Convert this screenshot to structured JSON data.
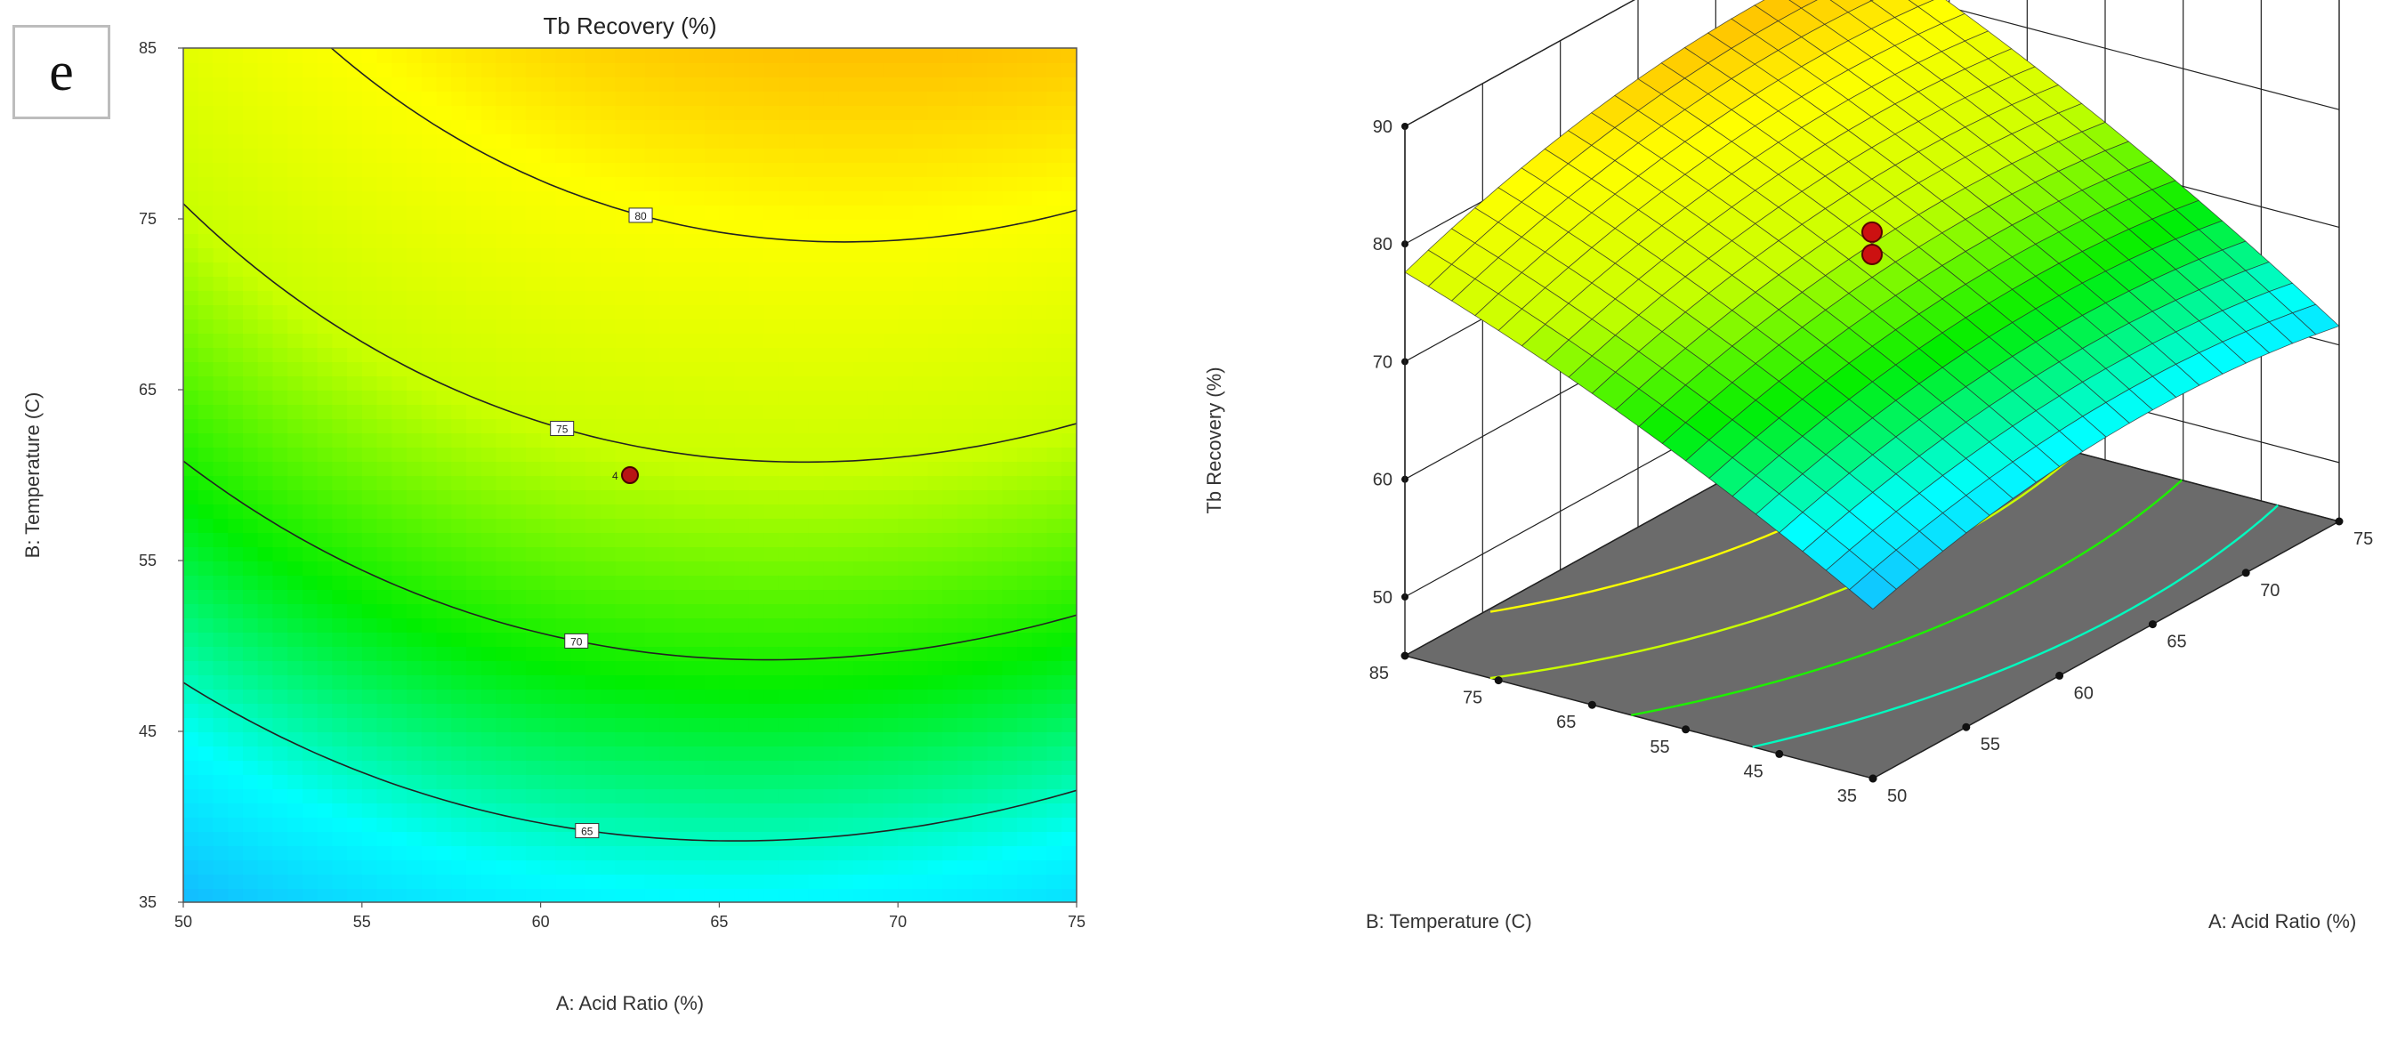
{
  "panel_label": "e",
  "chart_data": [
    {
      "type": "contour",
      "title": "Tb Recovery (%)",
      "xlabel": "A: Acid Ratio (%)",
      "ylabel": "B: Temperature (C)",
      "xlim": [
        50,
        75
      ],
      "ylim": [
        35,
        85
      ],
      "xticks": [
        50,
        55,
        60,
        65,
        70,
        75
      ],
      "yticks": [
        35,
        45,
        55,
        65,
        75,
        85
      ],
      "contour_levels": [
        65,
        70,
        75,
        80
      ],
      "contour_labels": [
        "65",
        "70",
        "75",
        "80"
      ],
      "design_point": {
        "x": 62.5,
        "y": 60,
        "label": "4"
      },
      "colormap": [
        "#1aa3ff",
        "#00ffff",
        "#00ee00",
        "#c8ff00",
        "#ffff00",
        "#ff9900"
      ]
    },
    {
      "type": "surface3d",
      "zlabel": "Tb Recovery (%)",
      "xlabel": "A: Acid Ratio (%)",
      "ylabel": "B: Temperature (C)",
      "xlim": [
        50,
        75
      ],
      "ylim": [
        35,
        85
      ],
      "zlim": [
        50,
        90
      ],
      "xticks": [
        50,
        55,
        60,
        65,
        70,
        75
      ],
      "yticks": [
        35,
        45,
        55,
        65,
        75,
        85
      ],
      "zticks": [
        50,
        60,
        70,
        80,
        90
      ],
      "design_points": [
        {
          "x": 62.5,
          "y": 60,
          "z": 75.3
        },
        {
          "x": 62.5,
          "y": 60,
          "z": 73.4
        }
      ]
    }
  ]
}
